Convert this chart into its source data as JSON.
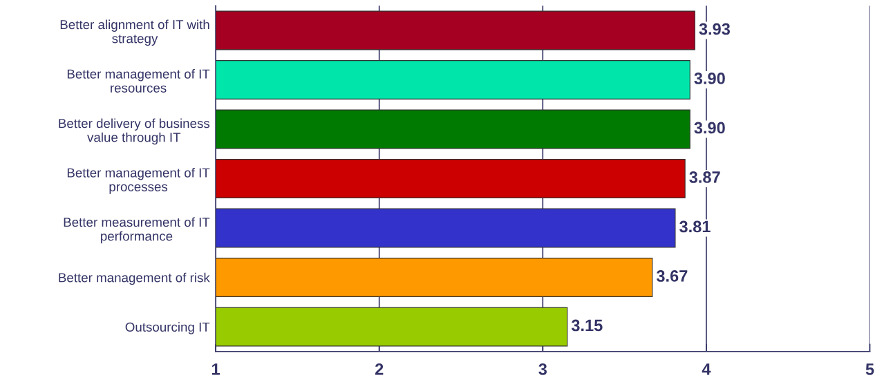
{
  "chart_data": {
    "type": "bar",
    "orientation": "horizontal",
    "categories": [
      "Better alignment of IT with\nstrategy",
      "Better management of IT\nresources",
      "Better delivery of business\nvalue through IT",
      "Better management of IT\nprocesses",
      "Better measurement of IT\nperformance",
      "Better management of risk",
      "Outsourcing IT"
    ],
    "values": [
      3.93,
      3.9,
      3.9,
      3.87,
      3.81,
      3.67,
      3.15
    ],
    "colors": [
      "#a50021",
      "#00e6aa",
      "#007a00",
      "#cc0000",
      "#3333cc",
      "#ff9900",
      "#99cc00"
    ],
    "value_labels": [
      "3.93",
      "3.90",
      "3.90",
      "3.87",
      "3.81",
      "3.67",
      "3.15"
    ],
    "xlim": [
      1,
      5
    ],
    "xticks": [
      1,
      2,
      3,
      4,
      5
    ],
    "grid": "x"
  }
}
